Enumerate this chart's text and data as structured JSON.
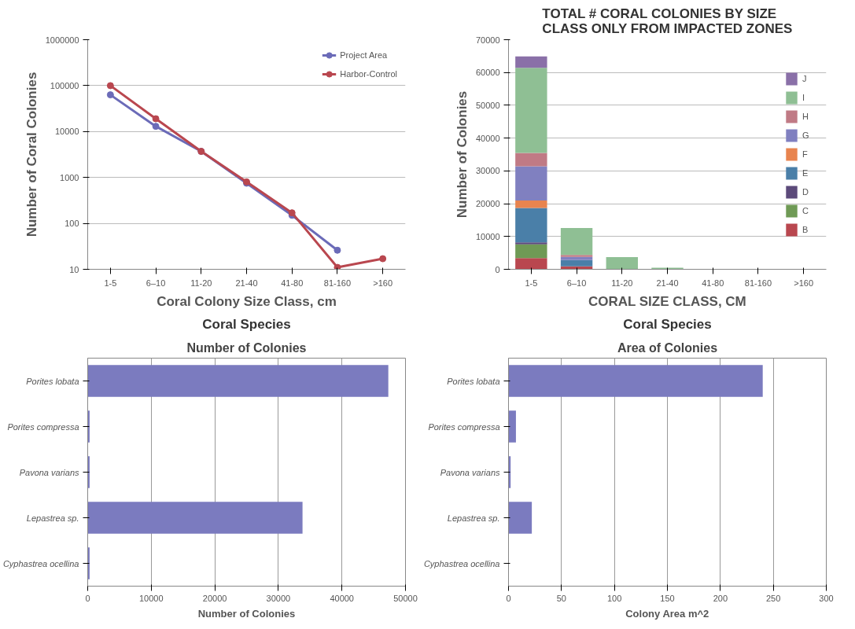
{
  "chart_data": [
    {
      "type": "line",
      "xlabel": "Coral Colony Size Class, cm",
      "ylabel": "Number of Coral Colonies",
      "categories": [
        "1-5",
        "6–10",
        "11-20",
        "21-40",
        "41-80",
        "81-160",
        ">160"
      ],
      "log": true,
      "ylim": [
        10,
        1000000
      ],
      "yticks": [
        10,
        100,
        1000,
        10000,
        100000,
        1000000
      ],
      "grid": "y",
      "legend": "top right",
      "marker": "circle",
      "series": [
        {
          "name": "Project Area",
          "color": "#6b6bb8",
          "values": [
            63000,
            13000,
            3700,
            750,
            150,
            26,
            null
          ]
        },
        {
          "name": "Harbor-Control",
          "color": "#b9474f",
          "values": [
            100000,
            19000,
            3700,
            800,
            170,
            11,
            17
          ]
        }
      ]
    },
    {
      "type": "bar",
      "title": "TOTAL # CORAL COLONIES BY SIZE CLASS ONLY FROM IMPACTED ZONES",
      "xlabel": "CORAL SIZE CLASS, CM",
      "ylabel": "Number of Colonies",
      "categories": [
        "1-5",
        "6–10",
        "11-20",
        "21-40",
        "41-80",
        "81-160",
        ">160"
      ],
      "stacked": true,
      "ylim": [
        0,
        70000
      ],
      "yticks": [
        0,
        10000,
        20000,
        30000,
        40000,
        50000,
        60000,
        70000
      ],
      "grid": "y",
      "legend": "right",
      "series": [
        {
          "name": "B",
          "color": "#b9474f",
          "values": [
            3400,
            900,
            0,
            0,
            0,
            0,
            0
          ]
        },
        {
          "name": "C",
          "color": "#6f9a55",
          "values": [
            4200,
            0,
            0,
            0,
            0,
            0,
            0
          ]
        },
        {
          "name": "D",
          "color": "#5c4a7a",
          "values": [
            600,
            0,
            0,
            0,
            0,
            0,
            0
          ]
        },
        {
          "name": "E",
          "color": "#4a7fa8",
          "values": [
            10500,
            1900,
            0,
            0,
            0,
            0,
            0
          ]
        },
        {
          "name": "F",
          "color": "#e8844f",
          "values": [
            2300,
            0,
            0,
            0,
            0,
            0,
            0
          ]
        },
        {
          "name": "G",
          "color": "#8080c0",
          "values": [
            10400,
            1000,
            0,
            0,
            0,
            0,
            0
          ]
        },
        {
          "name": "H",
          "color": "#c07a85",
          "values": [
            4100,
            600,
            0,
            0,
            0,
            0,
            0
          ]
        },
        {
          "name": "I",
          "color": "#8fbf94",
          "values": [
            25900,
            8200,
            3700,
            500,
            0,
            0,
            0
          ]
        },
        {
          "name": "J",
          "color": "#8a70a8",
          "values": [
            3500,
            0,
            0,
            0,
            0,
            0,
            0
          ]
        }
      ]
    },
    {
      "type": "bar",
      "orientation": "horizontal",
      "title": "Coral Species",
      "subtitle": "Number of Colonies",
      "xlabel": "Number of Colonies",
      "categories": [
        "Porites lobata",
        "Porites compressa",
        "Pavona varians",
        "Lepastrea sp.",
        "Cyphastrea ocellina"
      ],
      "values": [
        47300,
        300,
        300,
        33800,
        300
      ],
      "color": "#7b7bbf",
      "xlim": [
        0,
        50000
      ],
      "xticks": [
        0,
        10000,
        20000,
        30000,
        40000,
        50000
      ],
      "grid": "x"
    },
    {
      "type": "bar",
      "orientation": "horizontal",
      "title": "Coral Species",
      "subtitle": "Area of Colonies",
      "xlabel": "Colony Area m^2",
      "categories": [
        "Porites lobata",
        "Porites compressa",
        "Pavona varians",
        "Lepastrea sp.",
        "Cyphastrea ocellina"
      ],
      "values": [
        240,
        7,
        2,
        22,
        0
      ],
      "color": "#7b7bbf",
      "xlim": [
        0,
        300
      ],
      "xticks": [
        0,
        50,
        100,
        150,
        200,
        250,
        300
      ],
      "grid": "x"
    }
  ]
}
